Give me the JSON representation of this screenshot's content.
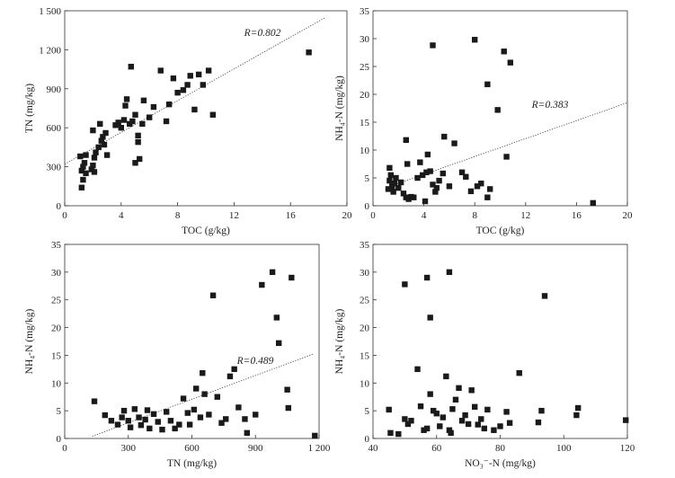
{
  "chart_data": [
    {
      "type": "scatter",
      "xlabel": "TOC (g/kg)",
      "ylabel": "TN (mg/kg)",
      "annotation": "R=0.802",
      "xlim": [
        0,
        20
      ],
      "ylim": [
        0,
        1500
      ],
      "xticks": [
        0,
        4,
        8,
        12,
        16,
        20
      ],
      "yticks": [
        0,
        300,
        600,
        900,
        1200,
        1500
      ],
      "ytick_labels": [
        "0",
        "300",
        "600",
        "900",
        "1 200",
        "1 500"
      ],
      "xtick_labels": [
        "0",
        "4",
        "8",
        "12",
        "16",
        "20"
      ],
      "trendline": [
        [
          0,
          320
        ],
        [
          18.5,
          1450
        ]
      ],
      "points": [
        [
          1.2,
          140
        ],
        [
          1.3,
          200
        ],
        [
          1.2,
          270
        ],
        [
          1.3,
          300
        ],
        [
          1.4,
          330
        ],
        [
          1.1,
          380
        ],
        [
          1.5,
          390
        ],
        [
          1.5,
          250
        ],
        [
          1.9,
          280
        ],
        [
          2,
          310
        ],
        [
          2.1,
          260
        ],
        [
          2.2,
          410
        ],
        [
          2.4,
          450
        ],
        [
          2.6,
          500
        ],
        [
          2.7,
          530
        ],
        [
          2.9,
          560
        ],
        [
          2.8,
          470
        ],
        [
          3,
          390
        ],
        [
          2.1,
          370
        ],
        [
          2.5,
          630
        ],
        [
          2,
          580
        ],
        [
          3.6,
          620
        ],
        [
          3.8,
          640
        ],
        [
          4,
          600
        ],
        [
          4.2,
          660
        ],
        [
          4.3,
          770
        ],
        [
          4.4,
          820
        ],
        [
          4.6,
          630
        ],
        [
          4.8,
          650
        ],
        [
          5,
          700
        ],
        [
          5.2,
          540
        ],
        [
          5.2,
          490
        ],
        [
          5.3,
          360
        ],
        [
          5,
          330
        ],
        [
          5.5,
          630
        ],
        [
          5.6,
          810
        ],
        [
          6,
          680
        ],
        [
          6.3,
          760
        ],
        [
          6.8,
          1040
        ],
        [
          7.2,
          650
        ],
        [
          7.4,
          780
        ],
        [
          7.7,
          980
        ],
        [
          8,
          870
        ],
        [
          8.4,
          890
        ],
        [
          8.7,
          930
        ],
        [
          8.9,
          1000
        ],
        [
          9.2,
          740
        ],
        [
          9.5,
          1010
        ],
        [
          9.8,
          930
        ],
        [
          10.2,
          1040
        ],
        [
          10.5,
          700
        ],
        [
          4.7,
          1070
        ],
        [
          17.3,
          1180
        ]
      ]
    },
    {
      "type": "scatter",
      "xlabel": "TOC (g/kg)",
      "ylabel": "NH₄-N (mg/kg)",
      "annotation": "R=0.383",
      "xlim": [
        0,
        20
      ],
      "ylim": [
        0,
        35
      ],
      "xticks": [
        0,
        4,
        8,
        12,
        16,
        20
      ],
      "yticks": [
        0,
        5,
        10,
        15,
        20,
        25,
        30,
        35
      ],
      "xtick_labels": [
        "0",
        "4",
        "8",
        "12",
        "16",
        "20"
      ],
      "ytick_labels": [
        "0",
        "5",
        "10",
        "15",
        "20",
        "25",
        "30",
        "35"
      ],
      "trendline": [
        [
          1,
          3.2
        ],
        [
          20,
          18.5
        ]
      ],
      "points": [
        [
          1.2,
          3
        ],
        [
          1.3,
          4.5
        ],
        [
          1.4,
          5.5
        ],
        [
          1.5,
          3.5
        ],
        [
          1.6,
          2.5
        ],
        [
          1.7,
          4
        ],
        [
          1.3,
          6.8
        ],
        [
          1.8,
          5
        ],
        [
          2,
          3.2
        ],
        [
          2.2,
          4.2
        ],
        [
          2.4,
          2.2
        ],
        [
          2.6,
          1.5
        ],
        [
          2.8,
          1.2
        ],
        [
          2.7,
          7.5
        ],
        [
          2.6,
          11.8
        ],
        [
          3,
          1.6
        ],
        [
          3.2,
          1.5
        ],
        [
          3.5,
          5
        ],
        [
          3.7,
          7.8
        ],
        [
          3.9,
          5.5
        ],
        [
          4.1,
          0.8
        ],
        [
          4.2,
          6
        ],
        [
          4.3,
          9.2
        ],
        [
          4.5,
          6.2
        ],
        [
          4.7,
          3.8
        ],
        [
          4.9,
          2.5
        ],
        [
          5,
          3.2
        ],
        [
          5.2,
          4.5
        ],
        [
          5.5,
          5.8
        ],
        [
          5.6,
          12.4
        ],
        [
          6,
          3.5
        ],
        [
          6.4,
          11.2
        ],
        [
          7,
          6
        ],
        [
          7.3,
          5.2
        ],
        [
          7.7,
          2.6
        ],
        [
          8.2,
          3.5
        ],
        [
          8.5,
          4
        ],
        [
          9,
          1.5
        ],
        [
          9.2,
          3
        ],
        [
          9.8,
          17.2
        ],
        [
          10.5,
          8.8
        ],
        [
          4.7,
          28.8
        ],
        [
          8,
          29.8
        ],
        [
          10.3,
          27.7
        ],
        [
          10.8,
          25.7
        ],
        [
          9,
          21.8
        ],
        [
          17.3,
          0.5
        ]
      ]
    },
    {
      "type": "scatter",
      "xlabel": "TN (mg/kg)",
      "ylabel": "NH₄-N (mg/kg)",
      "annotation": "R=0.489",
      "xlim": [
        0,
        1200
      ],
      "ylim": [
        0,
        35
      ],
      "xticks": [
        0,
        300,
        600,
        900,
        1200
      ],
      "yticks": [
        0,
        5,
        10,
        15,
        20,
        25,
        30,
        35
      ],
      "xtick_labels": [
        "0",
        "300",
        "600",
        "900",
        "1 200"
      ],
      "ytick_labels": [
        "0",
        "5",
        "10",
        "15",
        "20",
        "25",
        "30",
        "35"
      ],
      "trendline": [
        [
          130,
          0.4
        ],
        [
          1170,
          15.2
        ]
      ],
      "points": [
        [
          140,
          6.7
        ],
        [
          190,
          4.2
        ],
        [
          220,
          3.2
        ],
        [
          250,
          2.5
        ],
        [
          270,
          3.8
        ],
        [
          280,
          5
        ],
        [
          300,
          3.2
        ],
        [
          310,
          2
        ],
        [
          330,
          5.3
        ],
        [
          350,
          3.8
        ],
        [
          360,
          2.4
        ],
        [
          380,
          3.4
        ],
        [
          390,
          5.1
        ],
        [
          400,
          1.8
        ],
        [
          420,
          4.4
        ],
        [
          440,
          3
        ],
        [
          460,
          1.6
        ],
        [
          480,
          4.8
        ],
        [
          500,
          3.2
        ],
        [
          520,
          1.8
        ],
        [
          540,
          2.5
        ],
        [
          560,
          7.2
        ],
        [
          580,
          4.6
        ],
        [
          590,
          2.5
        ],
        [
          610,
          5.2
        ],
        [
          620,
          9
        ],
        [
          640,
          3.8
        ],
        [
          650,
          11.8
        ],
        [
          660,
          8
        ],
        [
          680,
          4.3
        ],
        [
          700,
          25.8
        ],
        [
          720,
          7.5
        ],
        [
          740,
          2.8
        ],
        [
          760,
          3.5
        ],
        [
          780,
          11.2
        ],
        [
          800,
          12.5
        ],
        [
          820,
          5.6
        ],
        [
          850,
          3.5
        ],
        [
          860,
          1
        ],
        [
          900,
          4.3
        ],
        [
          930,
          27.7
        ],
        [
          980,
          30
        ],
        [
          1000,
          21.8
        ],
        [
          1010,
          17.2
        ],
        [
          1050,
          8.8
        ],
        [
          1055,
          5.5
        ],
        [
          1070,
          29
        ],
        [
          1180,
          0.5
        ]
      ]
    },
    {
      "type": "scatter",
      "xlabel": "NO₃⁻-N (mg/kg)",
      "ylabel": "NH₄-N (mg/kg)",
      "annotation": "",
      "xlim": [
        40,
        120
      ],
      "ylim": [
        0,
        35
      ],
      "xticks": [
        40,
        60,
        80,
        100,
        120
      ],
      "yticks": [
        0,
        5,
        10,
        15,
        20,
        25,
        30,
        35
      ],
      "xtick_labels": [
        "40",
        "60",
        "80",
        "100",
        "120"
      ],
      "ytick_labels": [
        "0",
        "5",
        "10",
        "15",
        "20",
        "25",
        "30",
        "35"
      ],
      "trendline": null,
      "points": [
        [
          45,
          5.2
        ],
        [
          45.5,
          1
        ],
        [
          48,
          0.8
        ],
        [
          50,
          3.5
        ],
        [
          51,
          2.6
        ],
        [
          52,
          3.2
        ],
        [
          54,
          12.5
        ],
        [
          55,
          5.8
        ],
        [
          56,
          1.5
        ],
        [
          57,
          1.8
        ],
        [
          58,
          8
        ],
        [
          59,
          5
        ],
        [
          60,
          4.5
        ],
        [
          61,
          2.2
        ],
        [
          62,
          3.8
        ],
        [
          63,
          11.2
        ],
        [
          64,
          1.5
        ],
        [
          64.5,
          1
        ],
        [
          65,
          5.3
        ],
        [
          66,
          7
        ],
        [
          67,
          9.1
        ],
        [
          68,
          3.2
        ],
        [
          69,
          4.2
        ],
        [
          70,
          2.6
        ],
        [
          71,
          8.7
        ],
        [
          72,
          5.7
        ],
        [
          73,
          2.5
        ],
        [
          74,
          3.5
        ],
        [
          75,
          1.8
        ],
        [
          76,
          5.2
        ],
        [
          78,
          1.5
        ],
        [
          80,
          2.2
        ],
        [
          82,
          4.8
        ],
        [
          83,
          2.8
        ],
        [
          86,
          11.8
        ],
        [
          92,
          2.9
        ],
        [
          93,
          5
        ],
        [
          104,
          4.2
        ],
        [
          104.5,
          5.5
        ],
        [
          119.5,
          3.3
        ],
        [
          50,
          27.8
        ],
        [
          57,
          29
        ],
        [
          58,
          21.8
        ],
        [
          64,
          30
        ],
        [
          94,
          25.7
        ]
      ]
    }
  ]
}
